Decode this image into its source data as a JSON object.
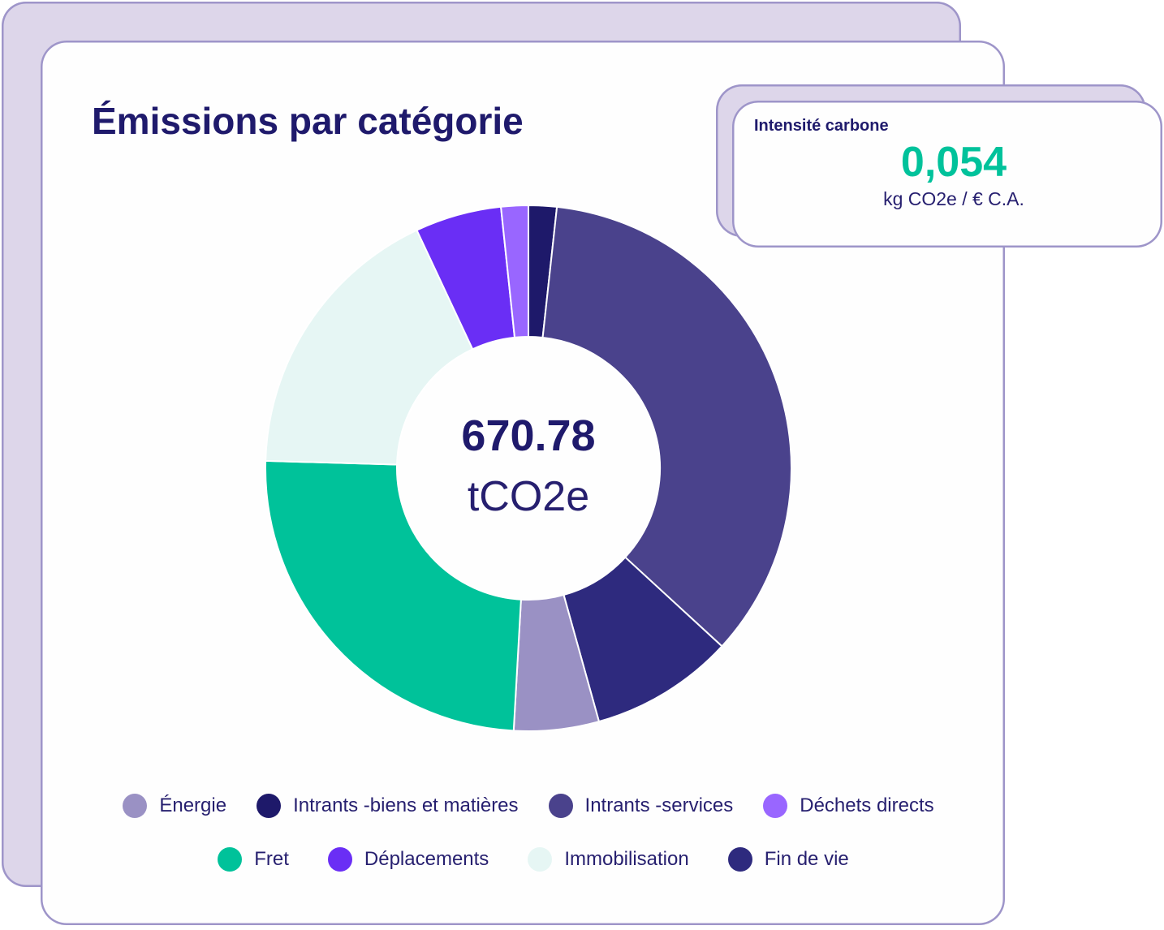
{
  "theme": {
    "primary_text": "#1f1a6c",
    "body_text": "#261f6f",
    "accent": "#00c29b",
    "card_border": "#9e95c9",
    "card_backdrop": "#ddd6ea",
    "card_background": "#fefefe"
  },
  "chart_data": {
    "type": "pie",
    "donut": true,
    "title": "Émissions par catégorie",
    "total": "670.78",
    "total_unit": "tCO2e",
    "categories": [
      "Énergie",
      "Intrants -biens et matières",
      "Intrants -services",
      "Déchets directs",
      "Fret",
      "Déplacements",
      "Immobilisation",
      "Fin de vie"
    ],
    "values": [
      35.0,
      11.6,
      235.5,
      11.2,
      164.7,
      35.6,
      117.9,
      59.3
    ],
    "colors": [
      "#9a91c4",
      "#1e196a",
      "#4a428c",
      "#9966ff",
      "#00c29a",
      "#6a2ef5",
      "#e6f6f4",
      "#2e2a7e"
    ],
    "legend": "bottom"
  },
  "intensity_card": {
    "title": "Intensité carbone",
    "value": "0,054",
    "unit": "kg CO2e / € C.A."
  }
}
